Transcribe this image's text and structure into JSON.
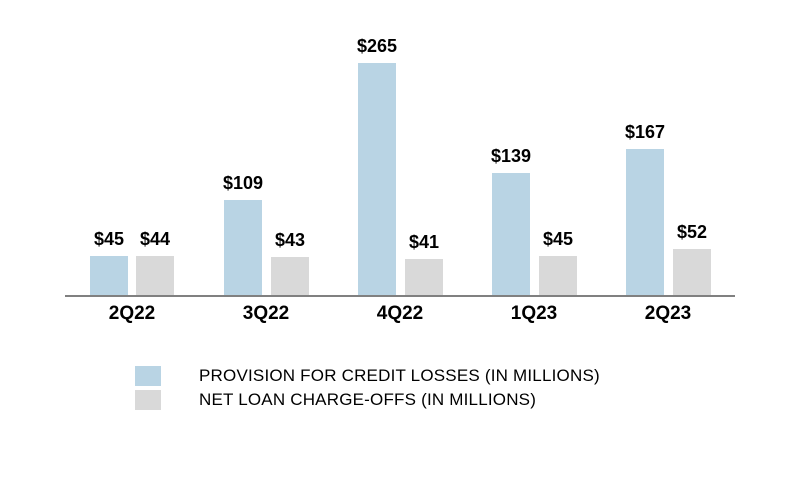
{
  "chart_data": {
    "type": "bar",
    "title": "",
    "categories": [
      "2Q22",
      "3Q22",
      "4Q22",
      "1Q23",
      "2Q23"
    ],
    "series": [
      {
        "name": "PROVISION FOR CREDIT LOSSES (IN MILLIONS)",
        "values": [
          45,
          109,
          265,
          139,
          167
        ],
        "labels": [
          "$45",
          "$109",
          "$265",
          "$139",
          "$167"
        ],
        "color": "#b9d4e4"
      },
      {
        "name": "NET LOAN CHARGE-OFFS (IN MILLIONS)",
        "values": [
          44,
          43,
          41,
          45,
          52
        ],
        "labels": [
          "$44",
          "$43",
          "$41",
          "$45",
          "$52"
        ],
        "color": "#d9d9d9"
      }
    ],
    "xlabel": "",
    "ylabel": "",
    "ylim": [
      0,
      265
    ],
    "grid": false,
    "legend_position": "bottom",
    "axis_color": "#808080",
    "value_label_format": "$#"
  }
}
